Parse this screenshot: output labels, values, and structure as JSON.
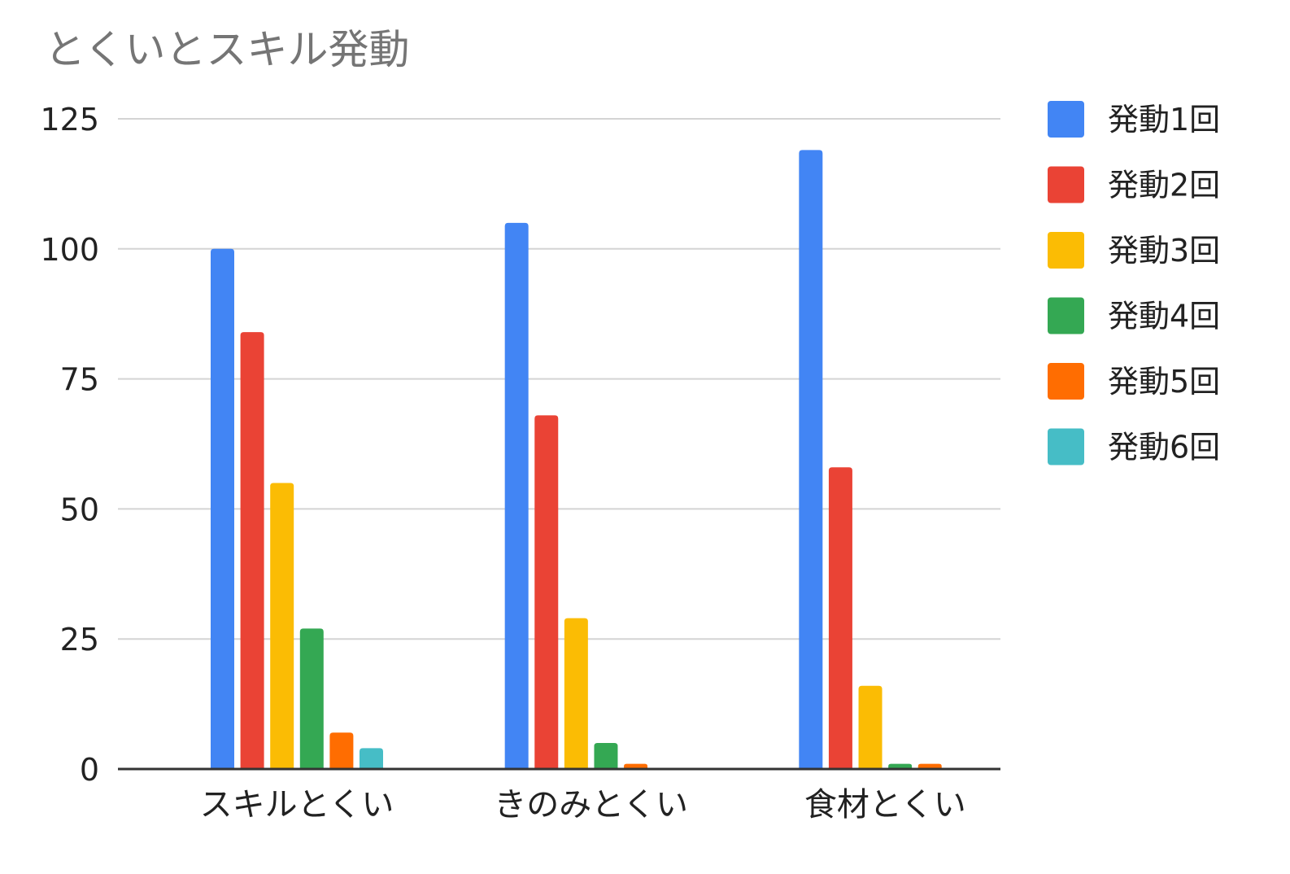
{
  "chart_data": {
    "type": "bar",
    "title": "とくいとスキル発動",
    "xlabel": "",
    "ylabel": "",
    "ylim": [
      0,
      125
    ],
    "yticks": [
      0,
      25,
      50,
      75,
      100,
      125
    ],
    "grid": true,
    "legend_position": "right",
    "categories": [
      "スキルとくい",
      "きのみとくい",
      "食材とくい"
    ],
    "series": [
      {
        "name": "発動1回",
        "color": "#4285F4",
        "values": [
          100,
          105,
          119
        ]
      },
      {
        "name": "発動2回",
        "color": "#EA4335",
        "values": [
          84,
          68,
          58
        ]
      },
      {
        "name": "発動3回",
        "color": "#FBBC04",
        "values": [
          55,
          29,
          16
        ]
      },
      {
        "name": "発動4回",
        "color": "#34A853",
        "values": [
          27,
          5,
          1
        ]
      },
      {
        "name": "発動5回",
        "color": "#FF6D01",
        "values": [
          7,
          1,
          1
        ]
      },
      {
        "name": "発動6回",
        "color": "#46BDC6",
        "values": [
          4,
          0,
          0
        ]
      }
    ]
  }
}
